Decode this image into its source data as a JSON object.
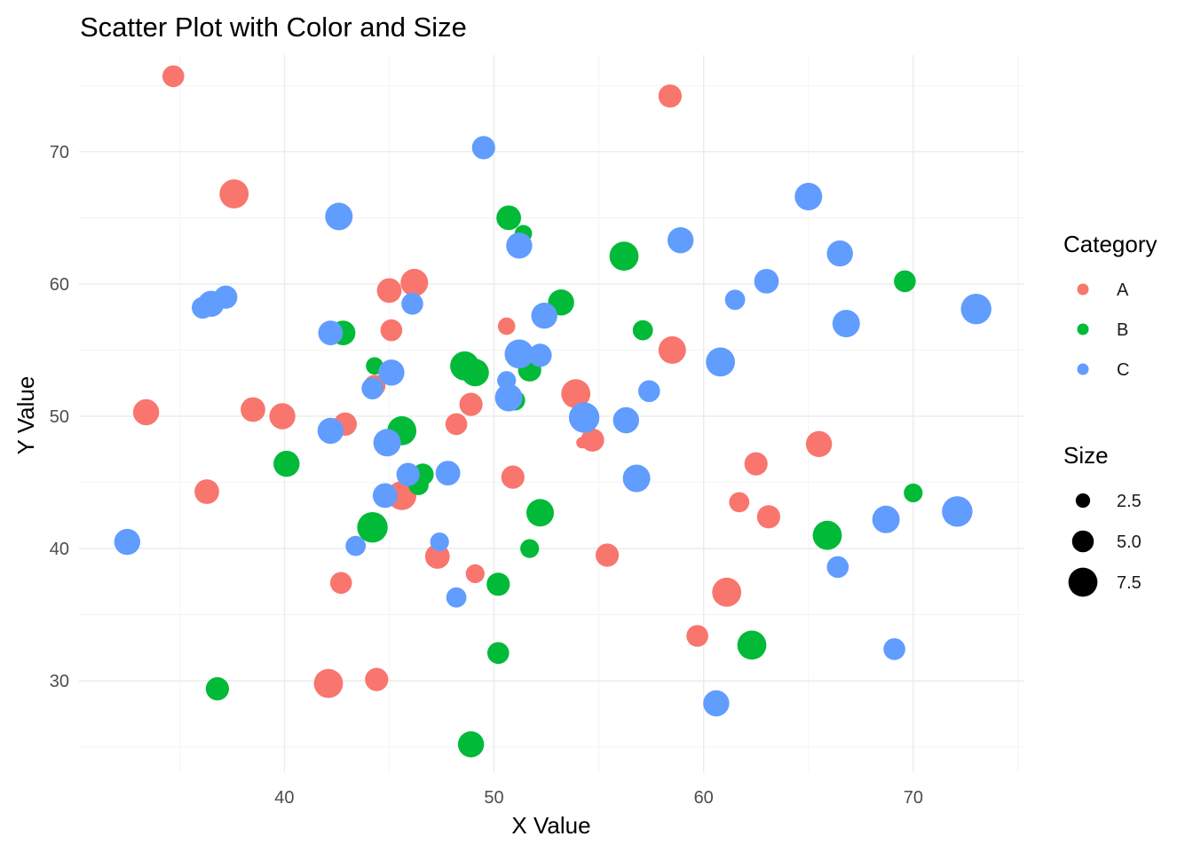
{
  "chart_data": {
    "type": "scatter",
    "title": "Scatter Plot with Color and Size",
    "xlabel": "X Value",
    "ylabel": "Y Value",
    "xlim": [
      30.2,
      75.3
    ],
    "ylim": [
      23.1,
      77.3
    ],
    "x_ticks": [
      40,
      50,
      60,
      70
    ],
    "y_ticks": [
      30,
      40,
      50,
      60,
      70
    ],
    "grid": true,
    "legend_position": "right",
    "colors": {
      "A": "#F8766D",
      "B": "#00BA38",
      "C": "#619CFF"
    },
    "color_legend": {
      "title": "Category",
      "entries": [
        "A",
        "B",
        "C"
      ]
    },
    "size_legend": {
      "title": "Size",
      "entries": [
        {
          "label": "2.5",
          "value": 2.5
        },
        {
          "label": "5.0",
          "value": 5.0
        },
        {
          "label": "7.5",
          "value": 7.5
        }
      ]
    },
    "series": [
      {
        "name": "A",
        "points": [
          [
            34.7,
            75.7,
            5.0
          ],
          [
            58.4,
            74.2,
            5.5
          ],
          [
            37.6,
            66.8,
            7.5
          ],
          [
            46.2,
            60.1,
            7.0
          ],
          [
            45.0,
            59.5,
            6.0
          ],
          [
            45.1,
            56.5,
            5.0
          ],
          [
            50.6,
            56.8,
            3.5
          ],
          [
            58.5,
            55.0,
            7.0
          ],
          [
            44.3,
            52.3,
            5.0
          ],
          [
            53.9,
            51.7,
            7.5
          ],
          [
            48.9,
            50.9,
            5.5
          ],
          [
            38.5,
            50.5,
            6.0
          ],
          [
            39.9,
            50.0,
            6.5
          ],
          [
            33.4,
            50.3,
            6.5
          ],
          [
            42.9,
            49.4,
            5.5
          ],
          [
            48.2,
            49.4,
            5.0
          ],
          [
            54.7,
            48.2,
            5.5
          ],
          [
            54.2,
            48.0,
            1.5
          ],
          [
            65.5,
            47.9,
            6.5
          ],
          [
            62.5,
            46.4,
            5.5
          ],
          [
            36.3,
            44.3,
            6.0
          ],
          [
            45.6,
            44.0,
            7.5
          ],
          [
            50.9,
            45.4,
            5.5
          ],
          [
            61.7,
            43.5,
            4.5
          ],
          [
            63.1,
            42.4,
            5.5
          ],
          [
            47.3,
            39.4,
            6.0
          ],
          [
            55.4,
            39.5,
            5.5
          ],
          [
            49.1,
            38.1,
            4.0
          ],
          [
            42.7,
            37.4,
            5.0
          ],
          [
            61.1,
            36.7,
            7.5
          ],
          [
            59.7,
            33.4,
            5.0
          ],
          [
            42.1,
            29.8,
            7.5
          ],
          [
            44.4,
            30.1,
            5.5
          ]
        ]
      },
      {
        "name": "B",
        "points": [
          [
            50.7,
            65.0,
            6.0
          ],
          [
            51.4,
            63.8,
            3.5
          ],
          [
            56.2,
            62.1,
            7.5
          ],
          [
            69.6,
            60.2,
            5.0
          ],
          [
            53.2,
            58.6,
            6.5
          ],
          [
            42.8,
            56.3,
            6.0
          ],
          [
            57.1,
            56.5,
            4.5
          ],
          [
            44.3,
            53.8,
            3.5
          ],
          [
            48.6,
            53.8,
            7.5
          ],
          [
            49.1,
            53.3,
            7.0
          ],
          [
            51.7,
            53.5,
            5.5
          ],
          [
            51.0,
            51.2,
            4.5
          ],
          [
            45.6,
            48.9,
            7.5
          ],
          [
            40.1,
            46.4,
            6.5
          ],
          [
            46.6,
            45.6,
            5.0
          ],
          [
            46.4,
            44.8,
            4.5
          ],
          [
            52.2,
            42.7,
            7.0
          ],
          [
            44.2,
            41.6,
            8.0
          ],
          [
            65.9,
            41.0,
            7.5
          ],
          [
            70.0,
            44.2,
            4.0
          ],
          [
            51.7,
            40.0,
            4.0
          ],
          [
            50.2,
            37.3,
            5.5
          ],
          [
            62.3,
            32.7,
            7.5
          ],
          [
            50.2,
            32.1,
            5.0
          ],
          [
            36.8,
            29.4,
            5.5
          ],
          [
            48.9,
            25.2,
            6.5
          ]
        ]
      },
      {
        "name": "C",
        "points": [
          [
            49.5,
            70.3,
            5.5
          ],
          [
            65.0,
            66.6,
            7.0
          ],
          [
            42.6,
            65.1,
            7.0
          ],
          [
            58.9,
            63.3,
            6.5
          ],
          [
            51.2,
            62.9,
            6.5
          ],
          [
            66.5,
            62.3,
            6.5
          ],
          [
            63.0,
            60.2,
            6.0
          ],
          [
            61.5,
            58.8,
            4.5
          ],
          [
            36.1,
            58.2,
            5.0
          ],
          [
            36.5,
            58.5,
            6.5
          ],
          [
            37.2,
            59.0,
            5.5
          ],
          [
            46.1,
            58.5,
            5.0
          ],
          [
            73.0,
            58.1,
            8.0
          ],
          [
            52.4,
            57.6,
            6.5
          ],
          [
            42.2,
            56.3,
            6.0
          ],
          [
            66.8,
            57.0,
            7.0
          ],
          [
            51.2,
            54.7,
            7.5
          ],
          [
            52.2,
            54.6,
            5.5
          ],
          [
            60.8,
            54.1,
            7.5
          ],
          [
            45.1,
            53.3,
            6.5
          ],
          [
            44.2,
            52.1,
            5.0
          ],
          [
            50.6,
            52.7,
            4.0
          ],
          [
            57.4,
            51.9,
            5.0
          ],
          [
            50.7,
            51.4,
            7.0
          ],
          [
            54.3,
            49.9,
            8.0
          ],
          [
            56.3,
            49.7,
            6.5
          ],
          [
            42.2,
            48.9,
            6.5
          ],
          [
            44.9,
            48.0,
            7.0
          ],
          [
            45.9,
            45.6,
            5.5
          ],
          [
            47.8,
            45.7,
            6.0
          ],
          [
            56.8,
            45.3,
            7.0
          ],
          [
            44.8,
            44.0,
            6.0
          ],
          [
            68.7,
            42.2,
            7.0
          ],
          [
            72.1,
            42.8,
            8.0
          ],
          [
            32.5,
            40.5,
            6.5
          ],
          [
            43.4,
            40.2,
            4.5
          ],
          [
            47.4,
            40.5,
            4.0
          ],
          [
            66.4,
            38.6,
            5.0
          ],
          [
            48.2,
            36.3,
            4.5
          ],
          [
            69.1,
            32.4,
            5.0
          ],
          [
            60.6,
            28.3,
            6.5
          ]
        ]
      }
    ]
  }
}
